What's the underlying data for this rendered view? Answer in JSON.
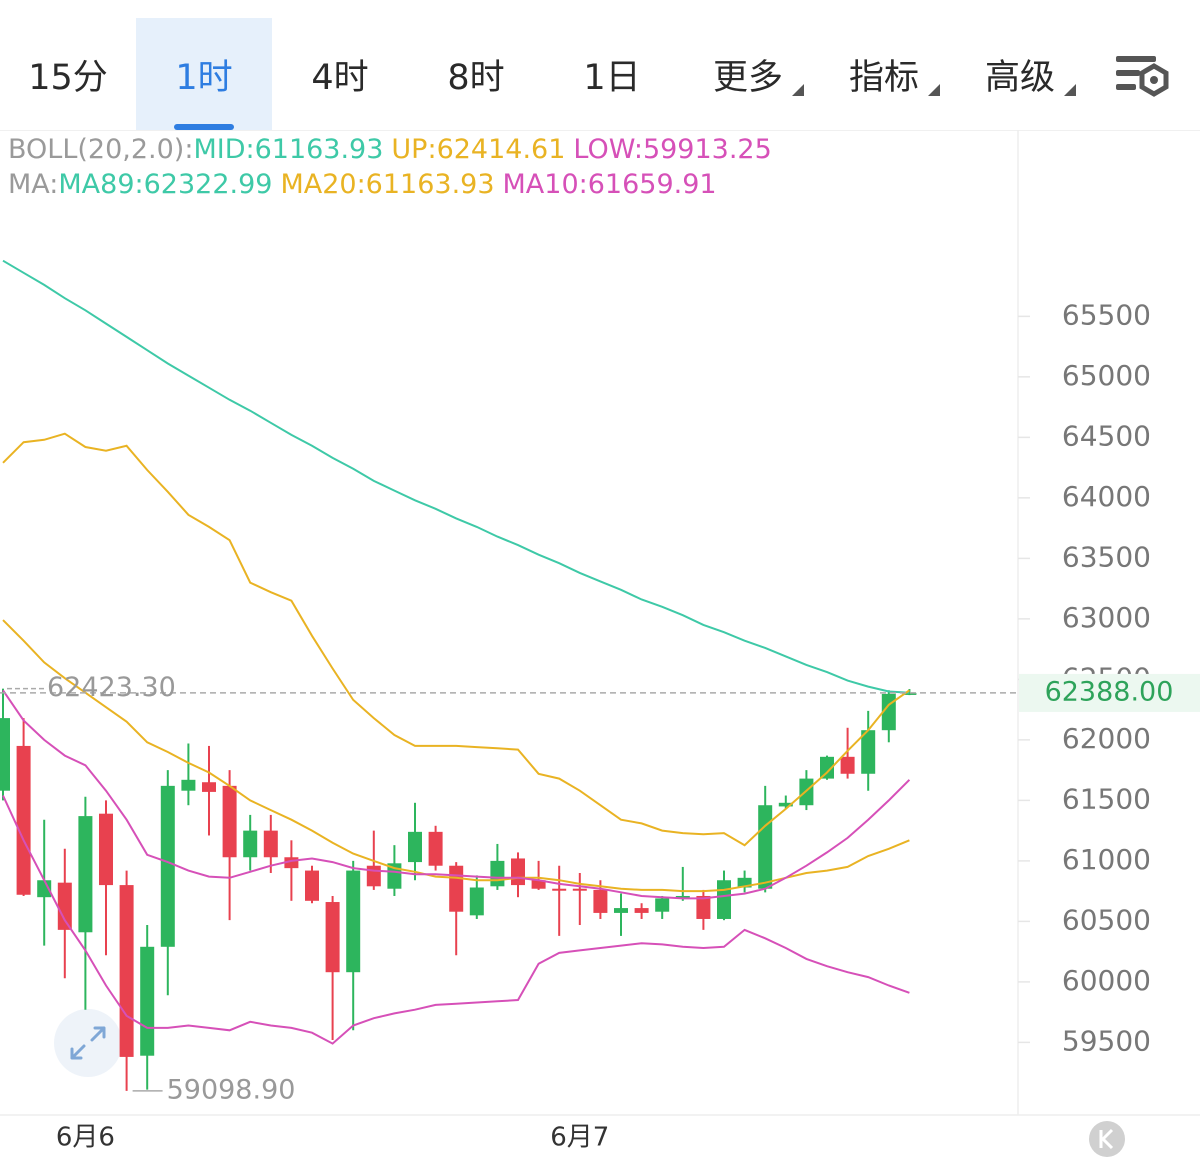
{
  "tabs": [
    "15分",
    "1时",
    "4时",
    "8时",
    "1日",
    "更多",
    "指标",
    "高级"
  ],
  "active_tab": "1时",
  "chart_data": {
    "type": "candlestick",
    "legend": [
      {
        "label": "BOLL(20,2.0):",
        "items": [
          {
            "text": "MID:61163.93",
            "color": "#3ec9a7"
          },
          {
            "text": "UP:62414.61",
            "color": "#e9b323"
          },
          {
            "text": "LOW:59913.25",
            "color": "#d650b8"
          }
        ]
      },
      {
        "label": "MA:",
        "items": [
          {
            "text": "MA89:62322.99",
            "color": "#3ec9a7"
          },
          {
            "text": "MA20:61163.93",
            "color": "#e9b323"
          },
          {
            "text": "MA10:61659.91",
            "color": "#d650b8"
          }
        ]
      }
    ],
    "categories": [
      null,
      null,
      null,
      null,
      "6月6",
      null,
      null,
      null,
      null,
      null,
      null,
      null,
      null,
      null,
      null,
      null,
      null,
      null,
      null,
      null,
      null,
      null,
      null,
      null,
      null,
      null,
      null,
      null,
      "6月7",
      null,
      null,
      null,
      null,
      null,
      null,
      null,
      null,
      null,
      null,
      null,
      null,
      null,
      null,
      null,
      null
    ],
    "open": [
      61580,
      61950,
      60700,
      60820,
      60410,
      61390,
      60800,
      59390,
      60290,
      61580,
      61650,
      61620,
      61030,
      61250,
      61030,
      60920,
      60660,
      60080,
      60960,
      60770,
      60990,
      61240,
      60960,
      60550,
      60790,
      61020,
      60840,
      60770,
      60770,
      60760,
      60570,
      60610,
      60580,
      60690,
      60710,
      60520,
      60780,
      60770,
      61450,
      61460,
      61680,
      61860,
      61720,
      62080,
      62380
    ],
    "high": [
      62423.3,
      62180,
      61340,
      61100,
      61530,
      61500,
      60920,
      60470,
      61750,
      61970,
      61950,
      61750,
      61380,
      61380,
      61170,
      60960,
      60710,
      61000,
      61250,
      61130,
      61480,
      61290,
      60990,
      60880,
      61140,
      61070,
      61000,
      60960,
      60900,
      60840,
      60730,
      60650,
      60710,
      60950,
      60760,
      60920,
      60920,
      61620,
      61540,
      61750,
      61870,
      62100,
      62240,
      62410,
      62420
    ],
    "low": [
      61500,
      60710,
      60300,
      60030,
      59770,
      60220,
      59098.9,
      59110,
      59890,
      61460,
      61210,
      60510,
      60920,
      60900,
      60670,
      60650,
      59520,
      59600,
      60760,
      60710,
      60840,
      60920,
      60220,
      60520,
      60760,
      60700,
      60760,
      60380,
      60470,
      60520,
      60380,
      60520,
      60520,
      60670,
      60430,
      60510,
      60740,
      60740,
      61430,
      61420,
      61670,
      61680,
      61580,
      61980,
      62370
    ],
    "close": [
      62180,
      60720,
      60840,
      60430,
      61370,
      60800,
      59380,
      60290,
      61620,
      61670,
      61570,
      61030,
      61250,
      61030,
      60940,
      60670,
      60080,
      60920,
      60790,
      60980,
      61240,
      60960,
      60580,
      60780,
      61000,
      60800,
      60770,
      60760,
      60760,
      60570,
      60610,
      60570,
      60690,
      60710,
      60520,
      60840,
      60860,
      61460,
      61480,
      61680,
      61860,
      61720,
      62080,
      62380,
      62388
    ],
    "up_color": "#2db55d",
    "down_color": "#e8414f",
    "lines": [
      {
        "color": "#3ec9a7",
        "values": [
          65960,
          65860,
          65760,
          65650,
          65550,
          65440,
          65330,
          65220,
          65110,
          65010,
          64910,
          64810,
          64720,
          64620,
          64520,
          64430,
          64330,
          64240,
          64140,
          64060,
          63980,
          63910,
          63830,
          63760,
          63680,
          63610,
          63530,
          63460,
          63380,
          63310,
          63240,
          63160,
          63100,
          63030,
          62950,
          62890,
          62820,
          62760,
          62690,
          62620,
          62560,
          62490,
          62440,
          62400,
          62390
        ]
      },
      {
        "color": "#e9b323",
        "values": [
          64290,
          64460,
          64480,
          64530,
          64420,
          64390,
          64430,
          64230,
          64050,
          63860,
          63760,
          63650,
          63300,
          63220,
          63150,
          62860,
          62590,
          62330,
          62180,
          62040,
          61950,
          61950,
          61950,
          61940,
          61930,
          61920,
          61720,
          61680,
          61580,
          61460,
          61340,
          61310,
          61250,
          61230,
          61220,
          61230,
          61130,
          61290,
          61430,
          61580,
          61730,
          61910,
          62080,
          62290,
          62410
        ]
      },
      {
        "color": "#e9b323",
        "values": [
          62990,
          62820,
          62640,
          62510,
          62390,
          62270,
          62150,
          61980,
          61900,
          61810,
          61730,
          61620,
          61500,
          61420,
          61340,
          61250,
          61150,
          61060,
          61000,
          60940,
          60910,
          60870,
          60860,
          60840,
          60840,
          60860,
          60860,
          60840,
          60810,
          60790,
          60770,
          60760,
          60760,
          60750,
          60750,
          60760,
          60790,
          60820,
          60860,
          60900,
          60920,
          60950,
          61040,
          61100,
          61170
        ]
      },
      {
        "color": "#d650b8",
        "values": [
          61540,
          61170,
          60840,
          60510,
          60260,
          59970,
          59720,
          59620,
          59620,
          59640,
          59620,
          59600,
          59670,
          59640,
          59620,
          59580,
          59490,
          59640,
          59700,
          59740,
          59770,
          59810,
          59820,
          59830,
          59840,
          59850,
          60150,
          60240,
          60260,
          60280,
          60300,
          60320,
          60310,
          60290,
          60280,
          60290,
          60430,
          60360,
          60280,
          60190,
          60130,
          60080,
          60040,
          59970,
          59910
        ]
      },
      {
        "color": "#d650b8",
        "values": [
          62410,
          62160,
          62000,
          61870,
          61790,
          61580,
          61340,
          61050,
          60990,
          60920,
          60870,
          60860,
          60910,
          60960,
          61000,
          61020,
          60990,
          60940,
          60920,
          60910,
          60890,
          60890,
          60880,
          60870,
          60860,
          60860,
          60840,
          60810,
          60790,
          60770,
          60740,
          60710,
          60700,
          60690,
          60690,
          60710,
          60730,
          60770,
          60860,
          60960,
          61070,
          61190,
          61340,
          61500,
          61670
        ]
      }
    ],
    "ylim": [
      58900,
      67040
    ],
    "yticks": [
      59500,
      60000,
      60500,
      61000,
      61500,
      62000,
      62500,
      63000,
      63500,
      64000,
      64500,
      65000,
      65500
    ],
    "grid": false,
    "high_marker": {
      "value": 62423.3,
      "label": "62423.30"
    },
    "low_marker": {
      "value": 59098.9,
      "label": "59098.90"
    },
    "last_price": {
      "value": 62388,
      "label": "62388.00"
    }
  }
}
